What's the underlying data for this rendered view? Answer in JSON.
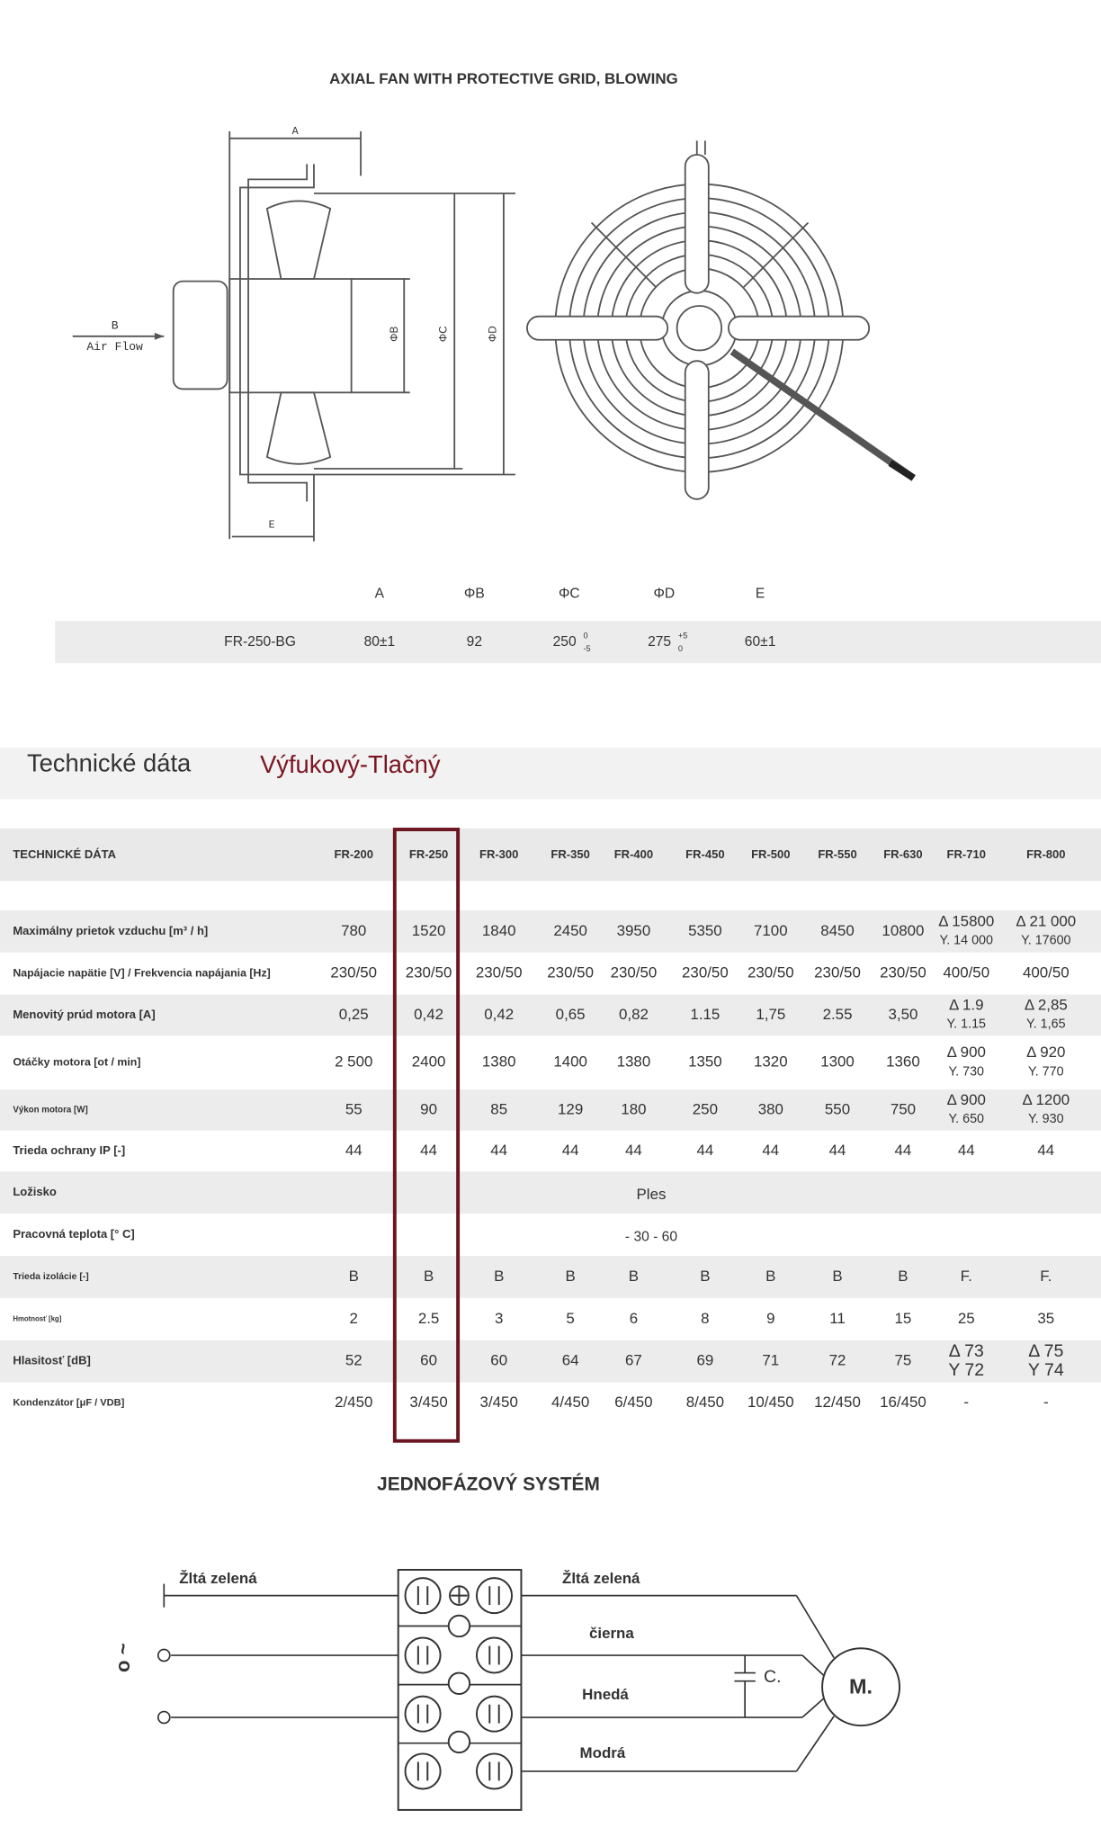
{
  "header": {
    "title": "AXIAL FAN WITH PROTECTIVE GRID, BLOWING"
  },
  "drawing": {
    "labels": {
      "a": "A",
      "b": "B",
      "air_flow": "Air Flow",
      "phi_b": "ΦB",
      "phi_c": "ΦC",
      "phi_d": "ΦD",
      "e": "E"
    }
  },
  "dimensions": {
    "columns": [
      "A",
      "ΦB",
      "ΦC",
      "ΦD",
      "E"
    ],
    "row": {
      "model": "FR-250-BG",
      "cells": [
        {
          "main": "80±1"
        },
        {
          "main": "92"
        },
        {
          "main": "250",
          "sup": "0",
          "sub": "-5"
        },
        {
          "main": "275",
          "sup": "+5",
          "sub": "0"
        },
        {
          "main": "60±1"
        }
      ]
    }
  },
  "section": {
    "title": "Technické dáta",
    "subtitle": "Výfukový-Tlačný"
  },
  "table": {
    "corner": "TECHNICKÉ DÁTA",
    "models": [
      "FR-200",
      "FR-250",
      "FR-300",
      "FR-350",
      "FR-400",
      "FR-450",
      "FR-500",
      "FR-550",
      "FR-630",
      "FR-710",
      "FR-800"
    ],
    "rows": [
      {
        "label": "Maximálny prietok vzduchu [m³ / h]",
        "cells": [
          "780",
          "1520",
          "1840",
          "2450",
          "3950",
          "5350",
          "7100",
          "8450",
          "10800",
          [
            "Δ 15800",
            "Y. 14 000"
          ],
          [
            "Δ 21 000",
            "Y. 17600"
          ]
        ]
      },
      {
        "label": "Napájacie napätie [V] / Frekvencia napájania [Hz]",
        "cells": [
          "230/50",
          "230/50",
          "230/50",
          "230/50",
          "230/50",
          "230/50",
          "230/50",
          "230/50",
          "230/50",
          "400/50",
          "400/50"
        ]
      },
      {
        "label": "Menovitý prúd motora [A]",
        "cells": [
          "0,25",
          "0,42",
          "0,42",
          "0,65",
          "0,82",
          "1.15",
          "1,75",
          "2.55",
          "3,50",
          [
            "Δ 1.9",
            "Y. 1.15"
          ],
          [
            "Δ 2,85",
            "Y. 1,65"
          ]
        ]
      },
      {
        "label": "Otáčky motora [ot / min]",
        "cells": [
          "2 500",
          "2400",
          "1380",
          "1400",
          "1380",
          "1350",
          "1320",
          "1300",
          "1360",
          [
            "Δ 900",
            "Y. 730"
          ],
          [
            "Δ 920",
            "Y. 770"
          ]
        ]
      },
      {
        "label": "Výkon motora [W]",
        "cells": [
          "55",
          "90",
          "85",
          "129",
          "180",
          "250",
          "380",
          "550",
          "750",
          [
            "Δ 900",
            "Y. 650"
          ],
          [
            "Δ 1200",
            "Y. 930"
          ]
        ]
      },
      {
        "label": "Trieda ochrany IP [-]",
        "cells": [
          "44",
          "44",
          "44",
          "44",
          "44",
          "44",
          "44",
          "44",
          "44",
          "44",
          "44"
        ]
      },
      {
        "label": "Ložisko",
        "span": "Ples"
      },
      {
        "label": "Pracovná teplota [° C]",
        "span": "- 30 - 60"
      },
      {
        "label": "Trieda izolácie [-]",
        "cells": [
          "B",
          "B",
          "B",
          "B",
          "B",
          "B",
          "B",
          "B",
          "B",
          "F.",
          "F."
        ]
      },
      {
        "label": "Hmotnosť [kg]",
        "cells": [
          "2",
          "2.5",
          "3",
          "5",
          "6",
          "8",
          "9",
          "11",
          "15",
          "25",
          "35"
        ]
      },
      {
        "label": "Hlasitosť [dB]",
        "cells": [
          "52",
          "60",
          "60",
          "64",
          "67",
          "69",
          "71",
          "72",
          "75",
          [
            "Δ 73",
            "Y 72"
          ],
          [
            "Δ 75",
            "Y 74"
          ]
        ]
      },
      {
        "label": "Kondenzátor [μF / VDB]",
        "cells": [
          "2/450",
          "3/450",
          "3/450",
          "4/450",
          "6/450",
          "8/450",
          "10/450",
          "12/450",
          "16/450",
          "-",
          "-"
        ]
      }
    ]
  },
  "wiring": {
    "title": "JEDNOFÁZOVÝ SYSTÉM",
    "ground_left": "Žltá zelená",
    "ground_right": "Žltá zelená",
    "black": "čierna",
    "brown": "Hnedá",
    "blue": "Modrá",
    "capacitor": "C.",
    "motor": "M.",
    "supply": "o ~"
  }
}
